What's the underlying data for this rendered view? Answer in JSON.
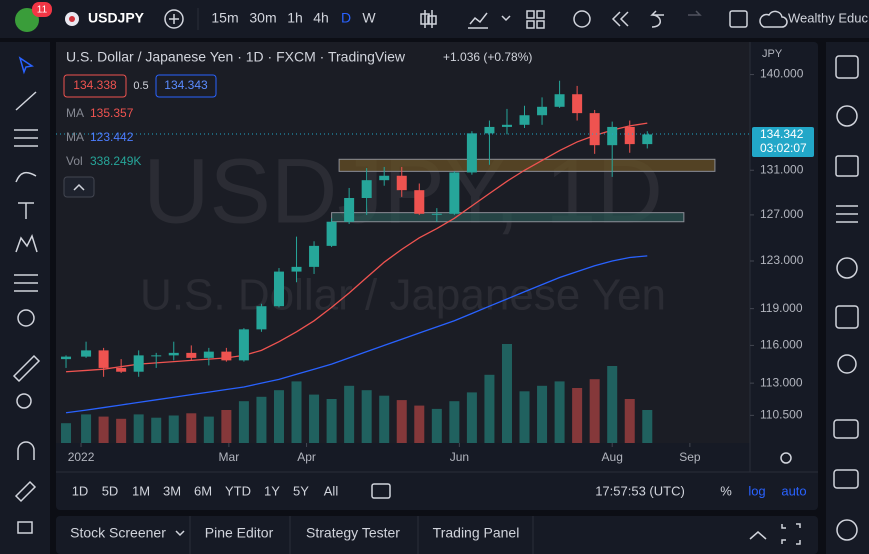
{
  "toolbar": {
    "badge": "11",
    "symbol": "USDJPY",
    "intervals": [
      "15m",
      "30m",
      "1h",
      "4h",
      "D",
      "W"
    ],
    "account": "Wealthy Educ"
  },
  "chart_data": {
    "type": "candlestick",
    "title": "U.S. Dollar / Japanese Yen · 1D · FXCM · TradingView",
    "change": "+1.036 (+0.78%)",
    "watermark": [
      "USDJPY, 1D",
      "U.S. Dollar / Japanese Yen"
    ],
    "legend": {
      "sell": "134.338",
      "spread": "0.5",
      "buy": "134.343",
      "ma_rows": [
        {
          "label": "MA",
          "value": "135.357",
          "color": "#ef5350"
        },
        {
          "label": "MA",
          "value": "123.442",
          "color": "#4c7dff"
        }
      ],
      "vol_label": "Vol",
      "vol_value": "338.249K"
    },
    "currency": "JPY",
    "x": [
      -5,
      3,
      10,
      17,
      24,
      31,
      38,
      45,
      52,
      59,
      66,
      73,
      80,
      87,
      94,
      101,
      108,
      115,
      122,
      129,
      136,
      143,
      150,
      157,
      164,
      171,
      178,
      185,
      192,
      199,
      206,
      213,
      220,
      227
    ],
    "open": [
      114.9,
      115.1,
      115.6,
      114.2,
      113.9,
      115.2,
      115.2,
      115.4,
      115.0,
      115.5,
      114.8,
      117.3,
      119.2,
      122.1,
      122.5,
      124.3,
      126.4,
      128.5,
      130.1,
      130.5,
      129.2,
      127.1,
      127.1,
      130.8,
      134.4,
      135.0,
      135.2,
      136.1,
      136.9,
      138.1,
      136.3,
      133.3,
      135.0,
      133.4
    ],
    "high": [
      115.2,
      116.3,
      115.8,
      114.9,
      115.6,
      115.4,
      116.3,
      116.0,
      115.8,
      115.8,
      117.4,
      119.4,
      122.4,
      125.1,
      124.7,
      126.7,
      129.4,
      131.2,
      131.3,
      131.3,
      129.8,
      127.6,
      130.9,
      134.6,
      135.6,
      136.7,
      137.0,
      137.8,
      139.4,
      138.9,
      136.6,
      135.5,
      135.6,
      134.6
    ],
    "low": [
      114.2,
      115.0,
      113.5,
      113.8,
      113.5,
      114.2,
      114.8,
      114.8,
      114.4,
      114.7,
      114.7,
      117.1,
      119.1,
      121.2,
      121.9,
      124.2,
      126.2,
      127.0,
      129.6,
      128.6,
      127.0,
      126.4,
      127.0,
      130.6,
      131.5,
      134.3,
      134.9,
      135.2,
      136.8,
      135.6,
      132.5,
      130.4,
      132.6,
      133.0
    ],
    "close": [
      115.1,
      115.6,
      114.2,
      113.9,
      115.2,
      115.2,
      115.4,
      115.0,
      115.5,
      114.8,
      117.3,
      119.2,
      122.1,
      122.5,
      124.3,
      126.4,
      128.5,
      130.1,
      130.5,
      129.2,
      127.1,
      127.1,
      130.8,
      134.4,
      135.0,
      135.2,
      136.1,
      136.9,
      138.1,
      136.3,
      133.3,
      135.0,
      133.4,
      134.3
    ],
    "volume": [
      180,
      260,
      240,
      220,
      260,
      230,
      250,
      270,
      240,
      300,
      380,
      420,
      480,
      560,
      440,
      400,
      520,
      480,
      430,
      390,
      340,
      310,
      380,
      460,
      620,
      900,
      470,
      520,
      560,
      500,
      580,
      700,
      400,
      300
    ],
    "volume_lim": [
      0,
      1000
    ],
    "series": [
      {
        "name": "MA",
        "color": "#ef5350",
        "values": [
          113.9,
          114.0,
          114.1,
          114.3,
          114.5,
          114.6,
          114.7,
          114.8,
          114.9,
          115.0,
          115.2,
          115.6,
          116.3,
          117.1,
          118.0,
          119.1,
          120.3,
          121.6,
          122.9,
          124.0,
          125.0,
          125.8,
          126.7,
          127.8,
          128.9,
          130.0,
          131.0,
          131.9,
          132.8,
          133.6,
          134.2,
          134.7,
          135.1,
          135.36
        ]
      },
      {
        "name": "MA",
        "color": "#2962ff",
        "values": [
          110.7,
          110.9,
          111.1,
          111.3,
          111.5,
          111.7,
          111.9,
          112.1,
          112.3,
          112.5,
          112.7,
          113.0,
          113.3,
          113.7,
          114.1,
          114.5,
          115.0,
          115.5,
          116.0,
          116.5,
          117.0,
          117.5,
          118.0,
          118.6,
          119.2,
          119.8,
          120.4,
          121.0,
          121.6,
          122.1,
          122.6,
          123.0,
          123.3,
          123.44
        ]
      }
    ],
    "zones": [
      {
        "from": 104,
        "to": 254,
        "low": 130.9,
        "high": 132.0,
        "color": "#6b5324"
      },
      {
        "from": 101,
        "to": 241.6,
        "low": 126.4,
        "high": 127.2,
        "color": "#2a5552"
      }
    ],
    "last_price": {
      "value": 134.342,
      "label": "134.342"
    },
    "countdown": "03:02:07",
    "log": true,
    "xlim": [
      -9,
      268
    ],
    "ylim": [
      108.4,
      143.2
    ],
    "xticks": [
      {
        "value": 1,
        "label": "2022"
      },
      {
        "value": 60,
        "label": "Mar"
      },
      {
        "value": 91,
        "label": "Apr"
      },
      {
        "value": 152,
        "label": "Jun"
      },
      {
        "value": 213,
        "label": "Aug"
      },
      {
        "value": 244,
        "label": "Sep"
      }
    ],
    "yticks": [
      {
        "value": 140,
        "label": "140.000"
      },
      {
        "value": 131,
        "label": "131.000"
      },
      {
        "value": 127,
        "label": "127.000"
      },
      {
        "value": 123,
        "label": "123.000"
      },
      {
        "value": 119,
        "label": "119.000"
      },
      {
        "value": 116,
        "label": "116.000"
      },
      {
        "value": 113,
        "label": "113.000"
      },
      {
        "value": 110.5,
        "label": "110.500"
      }
    ]
  },
  "bottom_bar": {
    "ranges": [
      "1D",
      "5D",
      "1M",
      "3M",
      "6M",
      "YTD",
      "1Y",
      "5Y",
      "All"
    ],
    "clock": "17:57:53 (UTC)",
    "percent": "%",
    "log": "log",
    "auto": "auto"
  },
  "tabs": [
    "Stock Screener",
    "Pine Editor",
    "Strategy Tester",
    "Trading Panel"
  ]
}
